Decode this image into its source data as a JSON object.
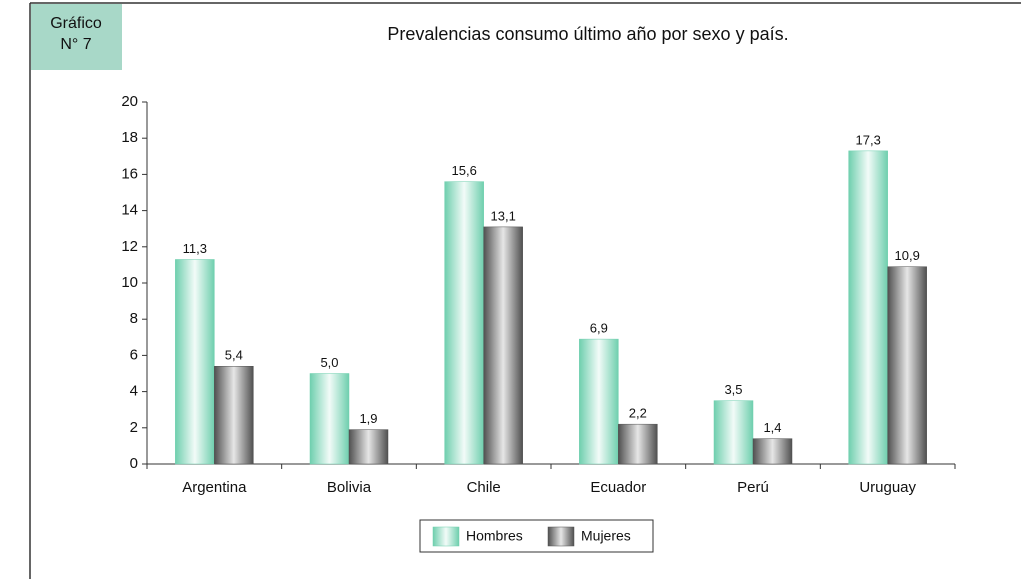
{
  "badge": [
    "Gráfico",
    "N° 7"
  ],
  "chart_data": {
    "type": "bar",
    "title": "Prevalencias consumo último año por sexo y país.",
    "categories": [
      "Argentina",
      "Bolivia",
      "Chile",
      "Ecuador",
      "Perú",
      "Uruguay"
    ],
    "series": [
      {
        "name": "Hombres",
        "color": "#6fcfae",
        "values": [
          11.3,
          5.0,
          15.6,
          6.9,
          3.5,
          17.3
        ],
        "value_labels": [
          "11,3",
          "5,0",
          "15,6",
          "6,9",
          "3,5",
          "17,3"
        ]
      },
      {
        "name": "Mujeres",
        "color": "#505050",
        "values": [
          5.4,
          1.9,
          13.1,
          2.2,
          1.4,
          10.9
        ],
        "value_labels": [
          "5,4",
          "1,9",
          "13,1",
          "2,2",
          "1,4",
          "10,9"
        ]
      }
    ],
    "ylim": [
      0,
      20
    ],
    "yticks": [
      0,
      2,
      4,
      6,
      8,
      10,
      12,
      14,
      16,
      18,
      20
    ],
    "legend": "bottom"
  }
}
